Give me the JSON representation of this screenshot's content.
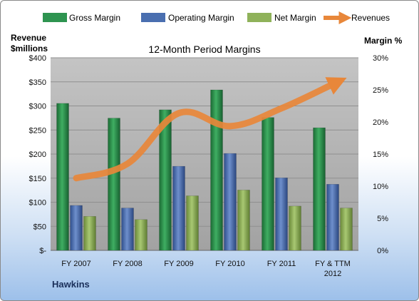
{
  "chart_data": {
    "type": "bar",
    "title": "12-Month Period Margins",
    "company": "Hawkins",
    "left_axis_title": [
      "Revenue",
      "$millions"
    ],
    "right_axis_title": "Margin %",
    "categories": [
      [
        "FY 2007"
      ],
      [
        "FY 2008"
      ],
      [
        "FY 2009"
      ],
      [
        "FY 2010"
      ],
      [
        "FY 2011"
      ],
      [
        "FY & TTM",
        "2012"
      ]
    ],
    "y_left": {
      "min": 0,
      "max": 400,
      "step": 50,
      "tick_labels": [
        "$-",
        "$50",
        "$100",
        "$150",
        "$200",
        "$250",
        "$300",
        "$350",
        "$400"
      ]
    },
    "y_right": {
      "min": 0,
      "max": 30,
      "step": 5,
      "tick_labels": [
        "0%",
        "5%",
        "10%",
        "15%",
        "20%",
        "25%",
        "30%"
      ]
    },
    "grid": true,
    "legend_position": "top",
    "series": [
      {
        "name": "Gross Margin",
        "axis": "right",
        "type": "bar",
        "color": "#2e9450",
        "values": [
          22.9,
          20.6,
          21.9,
          25.0,
          20.7,
          19.1
        ]
      },
      {
        "name": "Operating Margin",
        "axis": "right",
        "type": "bar",
        "color": "#4a6fb0",
        "values": [
          7.0,
          6.6,
          13.1,
          15.1,
          11.3,
          10.3
        ]
      },
      {
        "name": "Net Margin",
        "axis": "right",
        "type": "bar",
        "color": "#8fb25a",
        "values": [
          5.3,
          4.8,
          8.5,
          9.4,
          6.9,
          6.6
        ]
      },
      {
        "name": "Revenues",
        "axis": "left",
        "type": "line",
        "color": "#e8873a",
        "values": [
          150,
          180,
          285,
          258,
          295,
          345
        ]
      }
    ]
  }
}
